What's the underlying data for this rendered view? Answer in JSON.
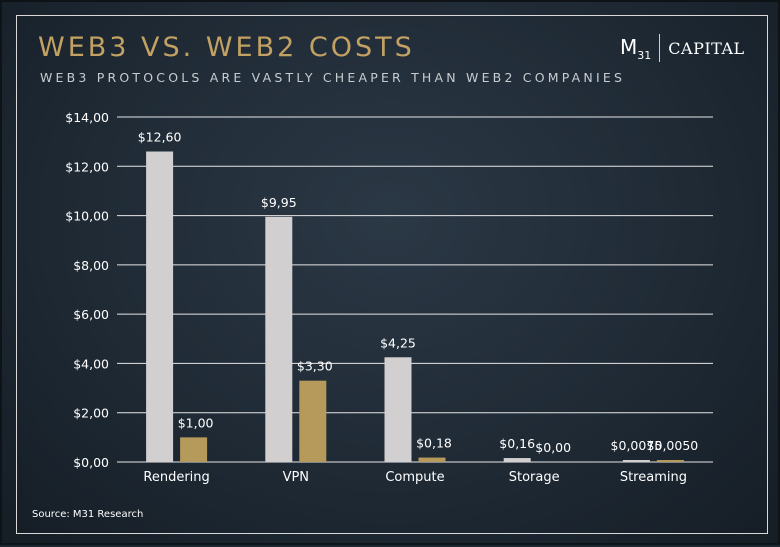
{
  "header": {
    "title": "WEB3 VS. WEB2 COSTS",
    "subtitle": "WEB3 PROTOCOLS ARE VASTLY CHEAPER THAN WEB2 COMPANIES"
  },
  "logo": {
    "mark": "M",
    "mark_sub": "31",
    "word": "CAPITAL"
  },
  "footer": {
    "source": "Source: M31 Research"
  },
  "colors": {
    "web2": "#d1cfd0",
    "web3": "#b69a5c",
    "title": "#c2a162",
    "grid": "#e6e6e6",
    "text": "#ffffff"
  },
  "chart_data": {
    "type": "bar",
    "title": "WEB3 VS. WEB2 COSTS",
    "subtitle": "WEB3 PROTOCOLS ARE VASTLY CHEAPER THAN WEB2 COMPANIES",
    "xlabel": "",
    "ylabel": "",
    "ylim": [
      0,
      14
    ],
    "yticks": [
      0,
      2,
      4,
      6,
      8,
      10,
      12,
      14
    ],
    "ytick_labels": [
      "$0,00",
      "$2,00",
      "$4,00",
      "$6,00",
      "$8,00",
      "$10,00",
      "$12,00",
      "$14,00"
    ],
    "grid": true,
    "legend": "none",
    "categories": [
      "Rendering",
      "VPN",
      "Compute",
      "Storage",
      "Streaming"
    ],
    "series": [
      {
        "values": [
          12.6,
          9.95,
          4.25,
          0.16,
          0.0075
        ],
        "labels": [
          "$12,60",
          "$9,95",
          "$4,25",
          "$0,16",
          "$0,0075"
        ]
      },
      {
        "values": [
          1.0,
          3.3,
          0.18,
          0.0,
          0.005
        ],
        "labels": [
          "$1,00",
          "$3,30",
          "$0,18",
          "$0,00",
          "$0,0050"
        ]
      }
    ]
  }
}
